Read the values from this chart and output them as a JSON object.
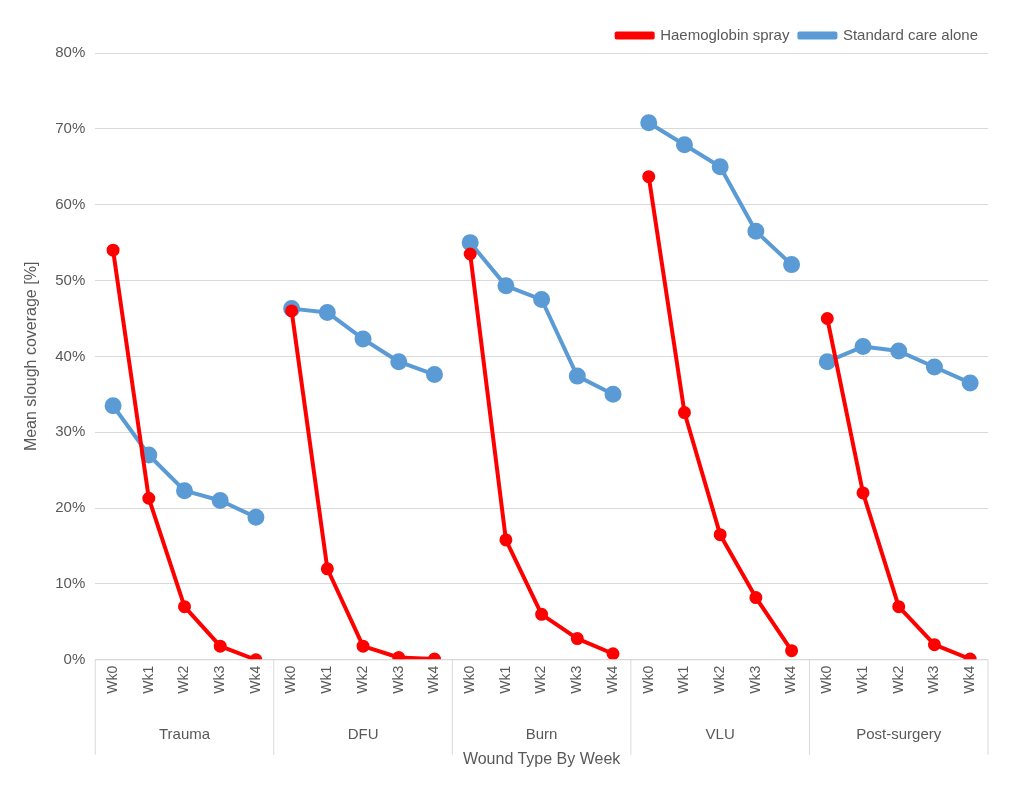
{
  "chart_data": {
    "type": "line",
    "xlabel": "Wound Type By Week",
    "ylabel": "Mean slough coverage [%]",
    "categories": [
      "Wk0",
      "Wk1",
      "Wk2",
      "Wk3",
      "Wk4",
      "Wk0",
      "Wk1",
      "Wk2",
      "Wk3",
      "Wk4",
      "Wk0",
      "Wk1",
      "Wk2",
      "Wk3",
      "Wk4",
      "Wk0",
      "Wk1",
      "Wk2",
      "Wk3",
      "Wk4",
      "Wk0",
      "Wk1",
      "Wk2",
      "Wk3",
      "Wk4"
    ],
    "annotations": [
      "Trauma",
      "DFU",
      "Burn",
      "VLU",
      "Post-surgery"
    ],
    "series": [
      {
        "name": "Haemoglobin spray",
        "color": "#ff0000",
        "values": [
          54,
          21.3,
          7,
          1.8,
          0,
          46,
          12,
          1.8,
          0.3,
          0.1,
          53.5,
          15.8,
          6,
          2.8,
          0.8,
          63.7,
          32.6,
          16.5,
          8.2,
          1.2,
          45,
          22,
          7,
          2,
          0.1
        ]
      },
      {
        "name": "Standard care alone",
        "color": "#5b9bd5",
        "values": [
          33.5,
          27,
          22.3,
          21,
          18.8,
          46.3,
          45.8,
          42.3,
          39.3,
          37.6,
          55,
          49.3,
          47.5,
          37.4,
          35,
          70.8,
          67.9,
          65,
          56.5,
          52.1,
          39.3,
          41.3,
          40.7,
          38.6,
          36.5
        ]
      }
    ],
    "ylim": [
      0,
      80
    ],
    "yticks": [
      {
        "value": 0,
        "label": "0%"
      },
      {
        "value": 10,
        "label": "10%"
      },
      {
        "value": 20,
        "label": "20%"
      },
      {
        "value": 30,
        "label": "30%"
      },
      {
        "value": 40,
        "label": "40%"
      },
      {
        "value": 50,
        "label": "50%"
      },
      {
        "value": 60,
        "label": "60%"
      },
      {
        "value": 70,
        "label": "70%"
      },
      {
        "value": 80,
        "label": "80%"
      }
    ],
    "grid": "y",
    "legend": "top right",
    "marker": "circle",
    "line_style": "solid"
  }
}
